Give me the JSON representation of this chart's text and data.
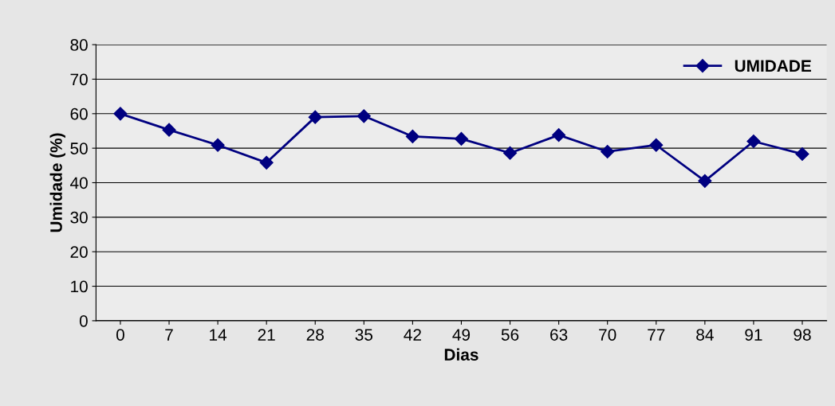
{
  "chart_data": {
    "type": "line",
    "xlabel": "Dias",
    "ylabel": "Umidade (%)",
    "categories": [
      "0",
      "7",
      "14",
      "21",
      "28",
      "35",
      "42",
      "49",
      "56",
      "63",
      "70",
      "77",
      "84",
      "91",
      "98"
    ],
    "series": [
      {
        "name": "UMIDADE",
        "color": "#000080",
        "values": [
          60,
          55.3,
          50.9,
          45.8,
          59,
          59.3,
          53.4,
          52.7,
          48.6,
          53.8,
          49,
          50.9,
          40.5,
          52,
          48.3
        ]
      }
    ],
    "ylim": [
      0,
      80
    ],
    "yticks": [
      0,
      10,
      20,
      30,
      40,
      50,
      60,
      70,
      80
    ],
    "grid": "y",
    "legend": "top right",
    "marker": "diamond",
    "line_style": "solid"
  }
}
